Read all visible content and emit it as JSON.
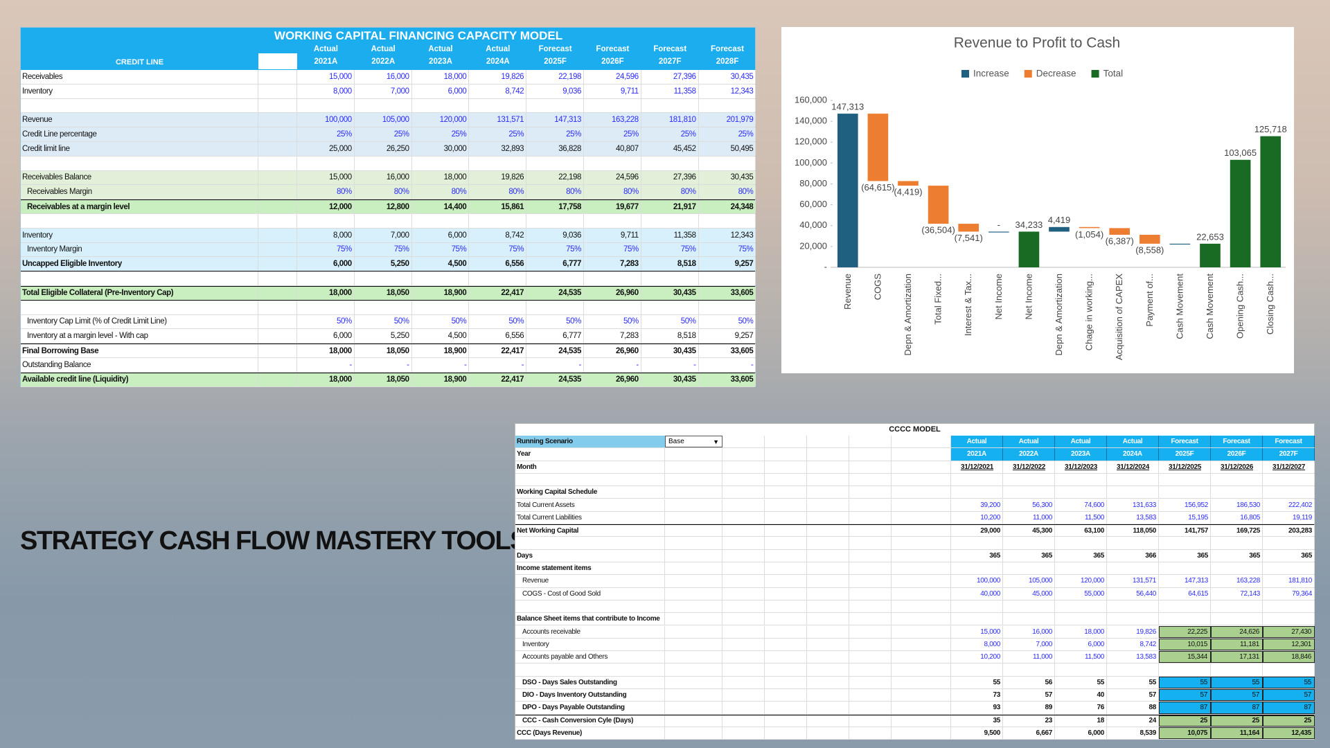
{
  "heading": "STRATEGY CASH FLOW MASTERY TOOLS",
  "credit_table": {
    "title": "WORKING  CAPITAL FINANCING CAPACITY MODEL",
    "label_header": "CREDIT LINE",
    "columns": [
      {
        "status": "Actual",
        "year": "2021A"
      },
      {
        "status": "Actual",
        "year": "2022A"
      },
      {
        "status": "Actual",
        "year": "2023A"
      },
      {
        "status": "Actual",
        "year": "2024A"
      },
      {
        "status": "Forecast",
        "year": "2025F"
      },
      {
        "status": "Forecast",
        "year": "2026F"
      },
      {
        "status": "Forecast",
        "year": "2027F"
      },
      {
        "status": "Forecast",
        "year": "2028F"
      }
    ],
    "rows": [
      {
        "label": "Receivables",
        "values": [
          "15,000",
          "16,000",
          "18,000",
          "19,826",
          "22,198",
          "24,596",
          "27,396",
          "30,435"
        ]
      },
      {
        "label": "Inventory",
        "values": [
          "8,000",
          "7,000",
          "6,000",
          "8,742",
          "9,036",
          "9,711",
          "11,358",
          "12,343"
        ]
      },
      {
        "label": "Revenue",
        "values": [
          "100,000",
          "105,000",
          "120,000",
          "131,571",
          "147,313",
          "163,228",
          "181,810",
          "201,979"
        ]
      },
      {
        "label": "Credit Line percentage",
        "values": [
          "25%",
          "25%",
          "25%",
          "25%",
          "25%",
          "25%",
          "25%",
          "25%"
        ]
      },
      {
        "label": "Credit limit line",
        "values": [
          "25,000",
          "26,250",
          "30,000",
          "32,893",
          "36,828",
          "40,807",
          "45,452",
          "50,495"
        ]
      },
      {
        "label": "Receivables Balance",
        "values": [
          "15,000",
          "16,000",
          "18,000",
          "19,826",
          "22,198",
          "24,596",
          "27,396",
          "30,435"
        ]
      },
      {
        "label": "Receivables Margin",
        "values": [
          "80%",
          "80%",
          "80%",
          "80%",
          "80%",
          "80%",
          "80%",
          "80%"
        ]
      },
      {
        "label": "Receivables at a margin level",
        "values": [
          "12,000",
          "12,800",
          "14,400",
          "15,861",
          "17,758",
          "19,677",
          "21,917",
          "24,348"
        ]
      },
      {
        "label": "Inventory",
        "values": [
          "8,000",
          "7,000",
          "6,000",
          "8,742",
          "9,036",
          "9,711",
          "11,358",
          "12,343"
        ]
      },
      {
        "label": "Inventory Margin",
        "values": [
          "75%",
          "75%",
          "75%",
          "75%",
          "75%",
          "75%",
          "75%",
          "75%"
        ]
      },
      {
        "label": "Uncapped Eligible Inventory",
        "values": [
          "6,000",
          "5,250",
          "4,500",
          "6,556",
          "6,777",
          "7,283",
          "8,518",
          "9,257"
        ]
      },
      {
        "label": "Total Eligible Collateral (Pre-Inventory Cap)",
        "values": [
          "18,000",
          "18,050",
          "18,900",
          "22,417",
          "24,535",
          "26,960",
          "30,435",
          "33,605"
        ]
      },
      {
        "label": "Inventory Cap Limit (% of  Credit Limit Line)",
        "values": [
          "50%",
          "50%",
          "50%",
          "50%",
          "50%",
          "50%",
          "50%",
          "50%"
        ]
      },
      {
        "label": "Inventory  at a margin level  - With cap",
        "values": [
          "6,000",
          "5,250",
          "4,500",
          "6,556",
          "6,777",
          "7,283",
          "8,518",
          "9,257"
        ]
      },
      {
        "label": "Final Borrowing Base",
        "values": [
          "18,000",
          "18,050",
          "18,900",
          "22,417",
          "24,535",
          "26,960",
          "30,435",
          "33,605"
        ]
      },
      {
        "label": "Outstanding Balance",
        "values": [
          "-",
          "-",
          "-",
          "-",
          "-",
          "-",
          "-",
          "-"
        ]
      },
      {
        "label": "Available credit line (Liquidity)",
        "values": [
          "18,000",
          "18,050",
          "18,900",
          "22,417",
          "24,535",
          "26,960",
          "30,435",
          "33,605"
        ]
      }
    ]
  },
  "chart_data": {
    "type": "waterfall",
    "title": "Revenue to Profit to Cash",
    "categories": [
      "Revenue",
      "COGS",
      "Depn & Amortization",
      "Total Fixed...",
      "Interest & Tax...",
      "Net Income",
      "Net Income",
      "Depn & Amortization",
      "Chage in working...",
      "Acquisition of CAPEX",
      "Payment of...",
      "Cash Movement",
      "Cash Movement",
      "Opening Cash...",
      "Closing Cash..."
    ],
    "series": [
      {
        "name": "Increase",
        "color": "#1f5f80",
        "values": [
          147313,
          null,
          null,
          null,
          null,
          0,
          null,
          4419,
          null,
          null,
          null,
          0,
          null,
          null,
          null
        ],
        "value_labels": [
          "147,313",
          null,
          null,
          null,
          null,
          "-",
          null,
          "4,419",
          null,
          null,
          null,
          null,
          null,
          null,
          null
        ]
      },
      {
        "name": "Decrease",
        "color": "#ed7d31",
        "values": [
          null,
          -64615,
          -4419,
          -36504,
          -7541,
          null,
          null,
          null,
          -1054,
          -6387,
          -8558,
          null,
          null,
          null,
          null
        ],
        "value_labels": [
          null,
          "(64,615)",
          "(4,419)",
          "(36,504)",
          "(7,541)",
          null,
          null,
          null,
          "(1,054)",
          "(6,387)",
          "(8,558)",
          null,
          null,
          null,
          null
        ]
      },
      {
        "name": "Total",
        "color": "#196b24",
        "values": [
          null,
          null,
          null,
          null,
          null,
          null,
          34233,
          null,
          null,
          null,
          null,
          null,
          22653,
          103065,
          125718
        ],
        "value_labels": [
          null,
          null,
          null,
          null,
          null,
          null,
          "34,233",
          null,
          null,
          null,
          null,
          null,
          "22,653",
          "103,065",
          "125,718"
        ]
      }
    ],
    "ylim": [
      0,
      160000
    ],
    "yticks": [
      {
        "value": 0,
        "label": "-"
      },
      {
        "value": 20000,
        "label": "20,000"
      },
      {
        "value": 40000,
        "label": "40,000"
      },
      {
        "value": 60000,
        "label": "60,000"
      },
      {
        "value": 80000,
        "label": "80,000"
      },
      {
        "value": 100000,
        "label": "100,000"
      },
      {
        "value": 120000,
        "label": "120,000"
      },
      {
        "value": 140000,
        "label": "140,000"
      },
      {
        "value": 160000,
        "label": "160,000"
      }
    ],
    "grid": false,
    "legend": "top"
  },
  "cccc_table": {
    "title": "CCCC MODEL",
    "scenario": "Base",
    "rows": [
      {
        "label": "Running Scenario",
        "values": [
          "Actual",
          "Actual",
          "Actual",
          "Actual",
          "Forecast",
          "Forecast",
          "Forecast"
        ]
      },
      {
        "label": "Year",
        "values": [
          "2021A",
          "2022A",
          "2023A",
          "2024A",
          "2025F",
          "2026F",
          "2027F"
        ]
      },
      {
        "label": "Month",
        "values": [
          "31/12/2021",
          "31/12/2022",
          "31/12/2023",
          "31/12/2024",
          "31/12/2025",
          "31/12/2026",
          "31/12/2027"
        ]
      },
      {
        "label": "Working Capital Schedule"
      },
      {
        "label": "Total Current Assets",
        "values": [
          "39,200",
          "56,300",
          "74,600",
          "131,633",
          "156,952",
          "186,530",
          "222,402"
        ]
      },
      {
        "label": "Total Current Liabilities",
        "values": [
          "10,200",
          "11,000",
          "11,500",
          "13,583",
          "15,195",
          "16,805",
          "19,119"
        ]
      },
      {
        "label": "Net Working Capital",
        "values": [
          "29,000",
          "45,300",
          "63,100",
          "118,050",
          "141,757",
          "169,725",
          "203,283"
        ]
      },
      {
        "label": "Days",
        "values": [
          "365",
          "365",
          "365",
          "366",
          "365",
          "365",
          "365"
        ]
      },
      {
        "label": "Income statement items"
      },
      {
        "label": "Revenue",
        "values": [
          "100,000",
          "105,000",
          "120,000",
          "131,571",
          "147,313",
          "163,228",
          "181,810"
        ]
      },
      {
        "label": "COGS - Cost of Good Sold",
        "values": [
          "40,000",
          "45,000",
          "55,000",
          "56,440",
          "64,615",
          "72,143",
          "79,364"
        ]
      },
      {
        "label": "Balance Sheet items that contribute to Income"
      },
      {
        "label": "Accounts receivable",
        "values": [
          "15,000",
          "16,000",
          "18,000",
          "19,826",
          "22,225",
          "24,626",
          "27,430"
        ]
      },
      {
        "label": "Inventory",
        "values": [
          "8,000",
          "7,000",
          "6,000",
          "8,742",
          "10,015",
          "11,181",
          "12,301"
        ]
      },
      {
        "label": "Accounts payable and Others",
        "values": [
          "10,200",
          "11,000",
          "11,500",
          "13,583",
          "15,344",
          "17,131",
          "18,846"
        ]
      },
      {
        "label": "DSO - Days Sales Outstanding",
        "values": [
          "55",
          "56",
          "55",
          "55",
          "55",
          "55",
          "55"
        ]
      },
      {
        "label": "DIO - Days Inventory Outstanding",
        "values": [
          "73",
          "57",
          "40",
          "57",
          "57",
          "57",
          "57"
        ]
      },
      {
        "label": "DPO - Days Payable Outstanding",
        "values": [
          "93",
          "89",
          "76",
          "88",
          "87",
          "87",
          "87"
        ]
      },
      {
        "label": "CCC - Cash Conversion Cyle (Days)",
        "values": [
          "35",
          "23",
          "18",
          "24",
          "25",
          "25",
          "25"
        ]
      },
      {
        "label": "CCC (Days Revenue)",
        "values": [
          "9,500",
          "6,667",
          "6,000",
          "8,539",
          "10,075",
          "11,164",
          "12,435"
        ]
      }
    ]
  }
}
